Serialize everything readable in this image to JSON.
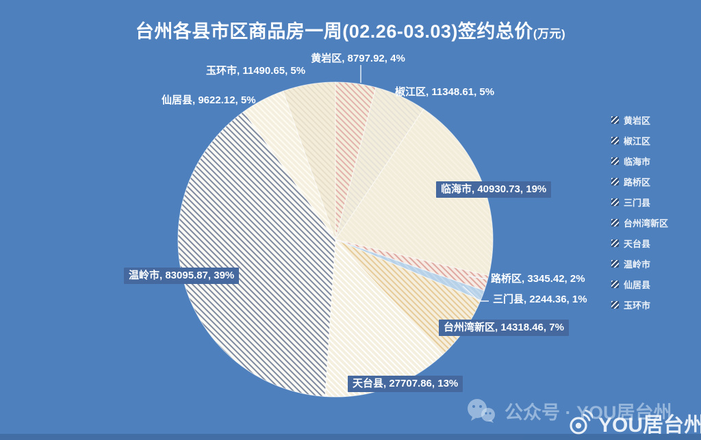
{
  "title": {
    "main": "台州各县市区商品房一周(02.26-03.03)签约总价",
    "unit": "(万元)"
  },
  "chart_data": {
    "type": "pie",
    "title": "台州各县市区商品房一周(02.26-03.03)签约总价(万元)",
    "unit": "万元",
    "start_angle_deg": 0,
    "direction": "clockwise",
    "legend_position": "right",
    "slices": [
      {
        "name": "黄岩区",
        "value": 8797.92,
        "pct_label": "4%",
        "fill": "#f4eedd",
        "hatch": "#e2b2ab"
      },
      {
        "name": "椒江区",
        "value": 11348.61,
        "pct_label": "5%",
        "fill": "#f3eddb",
        "hatch": "#e6e2d8"
      },
      {
        "name": "临海市",
        "value": 40930.73,
        "pct_label": "19%",
        "fill": "#f2edda",
        "hatch": "#f7f2e3"
      },
      {
        "name": "路桥区",
        "value": 3345.42,
        "pct_label": "2%",
        "fill": "#f6ece4",
        "hatch": "#dfa9a1"
      },
      {
        "name": "三门县",
        "value": 2244.36,
        "pct_label": "1%",
        "fill": "#b7d2e8",
        "hatch": "#c6dcee"
      },
      {
        "name": "台州湾新区",
        "value": 14318.46,
        "pct_label": "7%",
        "fill": "#f5eedc",
        "hatch": "#e6cb98"
      },
      {
        "name": "天台县",
        "value": 27707.86,
        "pct_label": "13%",
        "fill": "#f4efde",
        "hatch": "#ffffff"
      },
      {
        "name": "温岭市",
        "value": 83095.87,
        "pct_label": "39%",
        "fill": "#fbfaf5",
        "hatch": "#7f8aa0"
      },
      {
        "name": "仙居县",
        "value": 9622.12,
        "pct_label": "5%",
        "fill": "#f5efdf",
        "hatch": "#fdfbf2"
      },
      {
        "name": "玉环市",
        "value": 11490.65,
        "pct_label": "5%",
        "fill": "#f3edda",
        "hatch": "#e8dfca"
      }
    ],
    "legend": [
      "黄岩区",
      "椒江区",
      "临海市",
      "路桥区",
      "三门县",
      "台州湾新区",
      "天台县",
      "温岭市",
      "仙居县",
      "玉环市"
    ]
  },
  "colors": {
    "background": "#4e80bd",
    "label_box": "#45699e",
    "text": "#ffffff"
  },
  "watermark": {
    "wechat_text": "公众号 · YOU居台州",
    "weibo_text": "YOU居台州"
  }
}
